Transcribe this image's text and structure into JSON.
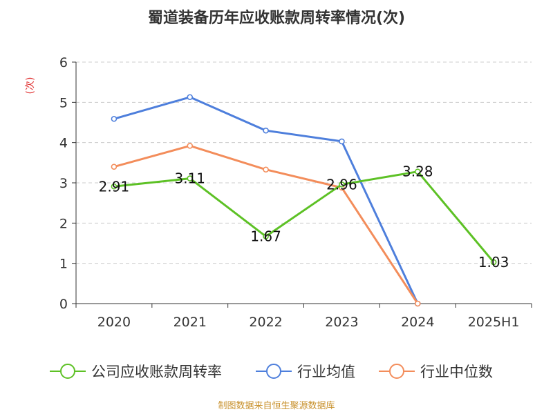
{
  "chart_data": {
    "type": "line",
    "title": "蜀道装备历年应收账款周转率情况(次)",
    "ylabel": "(次)",
    "categories": [
      "2020",
      "2021",
      "2022",
      "2023",
      "2024",
      "2025H1"
    ],
    "ylim": [
      0,
      6
    ],
    "yticks": [
      "0",
      "1",
      "2",
      "3",
      "4",
      "5",
      "6"
    ],
    "grid": true,
    "legend_position": "bottom",
    "series": [
      {
        "name": "公司应收账款周转率",
        "color": "#5dc125",
        "values": [
          2.91,
          3.11,
          1.67,
          2.96,
          3.28,
          1.03
        ],
        "labels": [
          "2.91",
          "3.11",
          "1.67",
          "2.96",
          "3.28",
          "1.03"
        ]
      },
      {
        "name": "行业均值",
        "color": "#4e7fdc",
        "values": [
          4.59,
          5.13,
          4.3,
          4.03,
          0,
          null
        ]
      },
      {
        "name": "行业中位数",
        "color": "#f38d5b",
        "values": [
          3.4,
          3.92,
          3.33,
          2.88,
          0,
          null
        ]
      }
    ],
    "source": "制图数据来自恒生聚源数据库"
  }
}
